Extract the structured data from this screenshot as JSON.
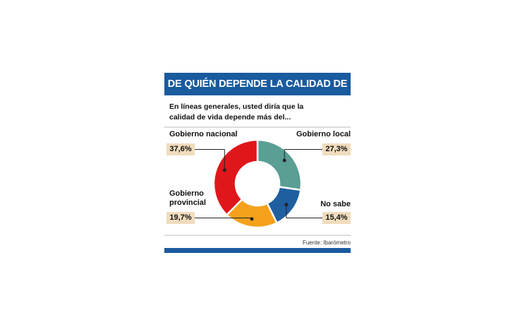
{
  "chart_data": {
    "type": "donut",
    "title": "DE QUIÉN DEPENDE LA CALIDAD DE VIDA",
    "subtitle": "En líneas generales, usted diría que la calidad de vida depende más del...",
    "source": "Fuente: Ibarómetro",
    "categories": [
      "Gobierno local",
      "No sabe",
      "Gobierno provincial",
      "Gobierno nacional"
    ],
    "values": [
      27.3,
      15.4,
      19.7,
      37.6
    ],
    "value_labels": [
      "27,3%",
      "15,4%",
      "19,7%",
      "37,6%"
    ],
    "colors": [
      "#5a9e94",
      "#1f5fa0",
      "#f5a11c",
      "#e0161b"
    ]
  }
}
